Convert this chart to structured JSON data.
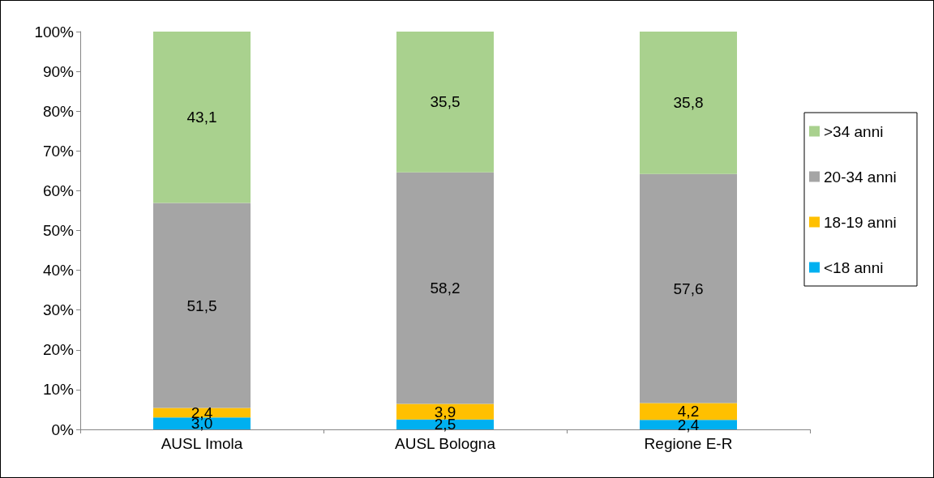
{
  "chart_data": {
    "type": "bar",
    "stacked": true,
    "categories": [
      "AUSL Imola",
      "AUSL Bologna",
      "Regione E-R"
    ],
    "series": [
      {
        "name": "<18 anni",
        "color": "#00b0f0",
        "values": [
          3.0,
          2.5,
          2.4
        ],
        "value_labels": [
          "3,0",
          "2,5",
          "2,4"
        ]
      },
      {
        "name": "18-19 anni",
        "color": "#ffc000",
        "values": [
          2.4,
          3.9,
          4.2
        ],
        "value_labels": [
          "2,4",
          "3,9",
          "4,2"
        ]
      },
      {
        "name": "20-34 anni",
        "color": "#a5a5a5",
        "values": [
          51.5,
          58.2,
          57.6
        ],
        "value_labels": [
          "51,5",
          "58,2",
          "57,6"
        ]
      },
      {
        "name": ">34 anni",
        "color": "#a9d18e",
        "values": [
          43.1,
          35.5,
          35.8
        ],
        "value_labels": [
          "43,1",
          "35,5",
          "35,8"
        ]
      }
    ],
    "ylim": [
      0,
      100
    ],
    "yticks": [
      {
        "value": 0,
        "label": "0%"
      },
      {
        "value": 10,
        "label": "10%"
      },
      {
        "value": 20,
        "label": "20%"
      },
      {
        "value": 30,
        "label": "30%"
      },
      {
        "value": 40,
        "label": "40%"
      },
      {
        "value": 50,
        "label": "50%"
      },
      {
        "value": 60,
        "label": "60%"
      },
      {
        "value": 70,
        "label": "70%"
      },
      {
        "value": 80,
        "label": "80%"
      },
      {
        "value": 90,
        "label": "90%"
      },
      {
        "value": 100,
        "label": "100%"
      }
    ],
    "grid": false,
    "legend": "right"
  }
}
